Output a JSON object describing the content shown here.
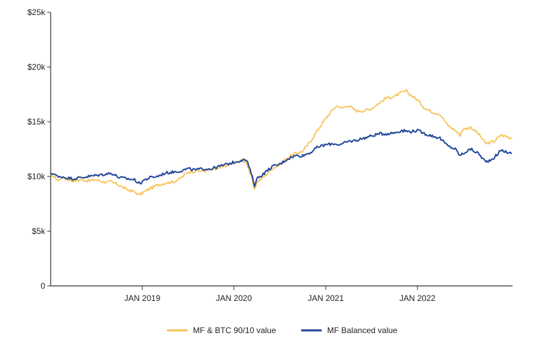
{
  "chart_data": {
    "type": "line",
    "title": "",
    "xlabel": "",
    "ylabel": "",
    "x_range": [
      "2018-01-01",
      "2023-01-15"
    ],
    "ylim": [
      0,
      25000
    ],
    "grid": false,
    "legend_position": "bottom-center",
    "y_ticks": [
      {
        "value": 0,
        "label": "0"
      },
      {
        "value": 5000,
        "label": "$5k"
      },
      {
        "value": 10000,
        "label": "$10k"
      },
      {
        "value": 15000,
        "label": "$15k"
      },
      {
        "value": 20000,
        "label": "$20k"
      },
      {
        "value": 25000,
        "label": "$25k"
      }
    ],
    "x_ticks": [
      {
        "value": "2019-01-01",
        "label": "JAN 2019"
      },
      {
        "value": "2020-01-01",
        "label": "JAN 2020"
      },
      {
        "value": "2021-01-01",
        "label": "JAN 2021"
      },
      {
        "value": "2022-01-01",
        "label": "JAN 2022"
      }
    ],
    "series": [
      {
        "name": "MF & BTC 90/10 value",
        "color": "#f7c257",
        "points": [
          [
            "2018-01-01",
            10100
          ],
          [
            "2018-01-15",
            10000
          ],
          [
            "2018-02-01",
            9600
          ],
          [
            "2018-02-15",
            9900
          ],
          [
            "2018-03-01",
            9800
          ],
          [
            "2018-04-01",
            9600
          ],
          [
            "2018-05-01",
            9700
          ],
          [
            "2018-06-01",
            9600
          ],
          [
            "2018-07-01",
            9700
          ],
          [
            "2018-08-01",
            9500
          ],
          [
            "2018-09-01",
            9500
          ],
          [
            "2018-10-01",
            9200
          ],
          [
            "2018-11-01",
            8800
          ],
          [
            "2018-12-01",
            8600
          ],
          [
            "2018-12-20",
            8300
          ],
          [
            "2019-01-01",
            8500
          ],
          [
            "2019-02-01",
            8900
          ],
          [
            "2019-03-01",
            9200
          ],
          [
            "2019-04-01",
            9400
          ],
          [
            "2019-05-01",
            9500
          ],
          [
            "2019-06-01",
            9800
          ],
          [
            "2019-07-01",
            10400
          ],
          [
            "2019-08-01",
            10500
          ],
          [
            "2019-09-01",
            10500
          ],
          [
            "2019-10-01",
            10600
          ],
          [
            "2019-11-01",
            10700
          ],
          [
            "2019-12-01",
            11000
          ],
          [
            "2020-01-01",
            11200
          ],
          [
            "2020-02-01",
            11500
          ],
          [
            "2020-02-20",
            11300
          ],
          [
            "2020-03-10",
            10000
          ],
          [
            "2020-03-23",
            8700
          ],
          [
            "2020-04-01",
            9500
          ],
          [
            "2020-05-01",
            10000
          ],
          [
            "2020-06-01",
            10700
          ],
          [
            "2020-07-01",
            11100
          ],
          [
            "2020-08-01",
            11700
          ],
          [
            "2020-09-01",
            12100
          ],
          [
            "2020-10-01",
            12300
          ],
          [
            "2020-11-01",
            13200
          ],
          [
            "2020-12-01",
            14300
          ],
          [
            "2021-01-01",
            15300
          ],
          [
            "2021-02-01",
            16200
          ],
          [
            "2021-02-20",
            16500
          ],
          [
            "2021-03-01",
            16200
          ],
          [
            "2021-04-01",
            16500
          ],
          [
            "2021-05-01",
            16000
          ],
          [
            "2021-06-01",
            16000
          ],
          [
            "2021-07-01",
            16200
          ],
          [
            "2021-08-01",
            16700
          ],
          [
            "2021-09-01",
            17200
          ],
          [
            "2021-10-01",
            17300
          ],
          [
            "2021-11-01",
            17700
          ],
          [
            "2021-11-20",
            17800
          ],
          [
            "2021-12-01",
            17500
          ],
          [
            "2022-01-01",
            17000
          ],
          [
            "2022-02-01",
            16200
          ],
          [
            "2022-03-01",
            15900
          ],
          [
            "2022-04-01",
            15700
          ],
          [
            "2022-05-01",
            14700
          ],
          [
            "2022-06-01",
            14200
          ],
          [
            "2022-06-20",
            13800
          ],
          [
            "2022-07-01",
            14300
          ],
          [
            "2022-08-01",
            14500
          ],
          [
            "2022-09-01",
            13900
          ],
          [
            "2022-10-01",
            13000
          ],
          [
            "2022-11-01",
            13200
          ],
          [
            "2022-12-01",
            13800
          ],
          [
            "2023-01-10",
            13500
          ]
        ]
      },
      {
        "name": "MF Balanced value",
        "color": "#23479a",
        "points": [
          [
            "2018-01-01",
            10200
          ],
          [
            "2018-01-15",
            10300
          ],
          [
            "2018-02-01",
            9900
          ],
          [
            "2018-02-15",
            10000
          ],
          [
            "2018-03-01",
            9900
          ],
          [
            "2018-04-01",
            9800
          ],
          [
            "2018-05-01",
            9900
          ],
          [
            "2018-06-01",
            10000
          ],
          [
            "2018-07-01",
            10100
          ],
          [
            "2018-08-01",
            10200
          ],
          [
            "2018-09-01",
            10300
          ],
          [
            "2018-10-01",
            9900
          ],
          [
            "2018-11-01",
            9800
          ],
          [
            "2018-12-01",
            9700
          ],
          [
            "2018-12-24",
            9300
          ],
          [
            "2019-01-01",
            9600
          ],
          [
            "2019-02-01",
            9900
          ],
          [
            "2019-03-01",
            10000
          ],
          [
            "2019-04-01",
            10300
          ],
          [
            "2019-05-01",
            10400
          ],
          [
            "2019-06-01",
            10500
          ],
          [
            "2019-07-01",
            10700
          ],
          [
            "2019-08-01",
            10600
          ],
          [
            "2019-09-01",
            10700
          ],
          [
            "2019-10-01",
            10700
          ],
          [
            "2019-11-01",
            10900
          ],
          [
            "2019-12-01",
            11100
          ],
          [
            "2020-01-01",
            11300
          ],
          [
            "2020-02-01",
            11500
          ],
          [
            "2020-02-20",
            11500
          ],
          [
            "2020-03-10",
            10300
          ],
          [
            "2020-03-23",
            9200
          ],
          [
            "2020-04-01",
            9800
          ],
          [
            "2020-05-01",
            10300
          ],
          [
            "2020-06-01",
            10900
          ],
          [
            "2020-07-01",
            11100
          ],
          [
            "2020-08-01",
            11600
          ],
          [
            "2020-09-01",
            11900
          ],
          [
            "2020-10-01",
            11900
          ],
          [
            "2020-11-01",
            12200
          ],
          [
            "2020-12-01",
            12700
          ],
          [
            "2021-01-01",
            12900
          ],
          [
            "2021-02-01",
            13000
          ],
          [
            "2021-03-01",
            12900
          ],
          [
            "2021-04-01",
            13200
          ],
          [
            "2021-05-01",
            13300
          ],
          [
            "2021-06-01",
            13500
          ],
          [
            "2021-07-01",
            13700
          ],
          [
            "2021-08-01",
            13900
          ],
          [
            "2021-09-01",
            13900
          ],
          [
            "2021-10-01",
            14000
          ],
          [
            "2021-11-01",
            14200
          ],
          [
            "2021-12-01",
            14100
          ],
          [
            "2022-01-01",
            14200
          ],
          [
            "2022-02-01",
            13900
          ],
          [
            "2022-03-01",
            13700
          ],
          [
            "2022-04-01",
            13500
          ],
          [
            "2022-05-01",
            12800
          ],
          [
            "2022-06-01",
            12500
          ],
          [
            "2022-06-20",
            11900
          ],
          [
            "2022-07-01",
            12100
          ],
          [
            "2022-08-01",
            12500
          ],
          [
            "2022-09-01",
            12100
          ],
          [
            "2022-10-01",
            11300
          ],
          [
            "2022-11-01",
            11700
          ],
          [
            "2022-12-01",
            12400
          ],
          [
            "2023-01-10",
            12100
          ]
        ]
      }
    ]
  }
}
